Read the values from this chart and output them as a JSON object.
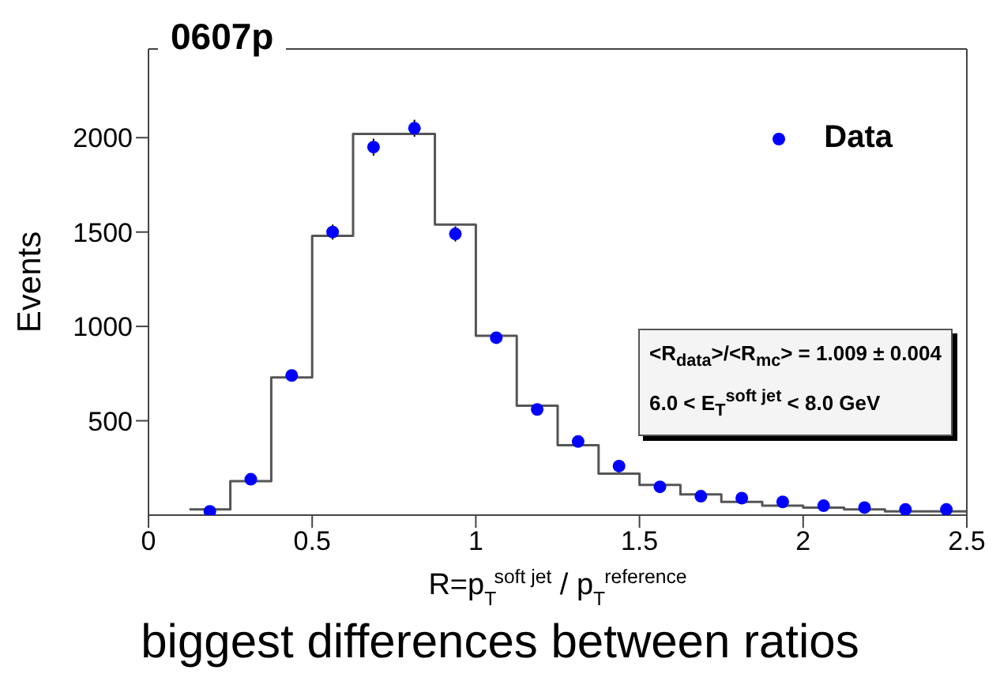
{
  "chart_data": {
    "type": "histogram",
    "title": "0607p",
    "xlabel": "R=p$_{T}$$^{soft jet}$ / p$_{T}$$^{reference}$",
    "ylabel": "Events",
    "bins": [
      0.125,
      0.25,
      0.375,
      0.5,
      0.625,
      0.75,
      0.875,
      1.0,
      1.125,
      1.25,
      1.375,
      1.5,
      1.625,
      1.75,
      1.875,
      2.0,
      2.125,
      2.25,
      2.375,
      2.5
    ],
    "series": [
      {
        "type": "scatter",
        "name": "Data",
        "color": "#0000ff",
        "x": [
          0.1875,
          0.3125,
          0.4375,
          0.5625,
          0.6875,
          0.8125,
          0.9375,
          1.0625,
          1.1875,
          1.3125,
          1.4375,
          1.5625,
          1.6875,
          1.8125,
          1.9375,
          2.0625,
          2.1875,
          2.3125,
          2.4375
        ],
        "values": [
          20,
          190,
          740,
          1500,
          1950,
          2050,
          1490,
          940,
          560,
          390,
          260,
          150,
          100,
          90,
          70,
          50,
          40,
          30,
          30
        ],
        "errors": [
          null,
          null,
          null,
          40,
          45,
          45,
          40,
          null,
          null,
          null,
          null,
          null,
          null,
          null,
          null,
          null,
          null,
          null,
          null
        ]
      },
      {
        "color": "#555555",
        "values": [
          30,
          180,
          730,
          1480,
          2020,
          2020,
          1540,
          950,
          580,
          370,
          220,
          160,
          110,
          70,
          50,
          40,
          30,
          20,
          20
        ]
      }
    ],
    "xlim": [
      0,
      2.5
    ],
    "xticks": [
      0,
      0.5,
      1,
      1.5,
      2,
      2.5
    ],
    "ylim": [
      0,
      2470
    ],
    "yticks": [
      500,
      1000,
      1500,
      2000
    ],
    "grid": false,
    "legend": "top right",
    "marker": "circle",
    "annotations": [
      "<R$_{data}$>/<R$_{mc}$> = 1.009 ± 0.004",
      "6.0 < E$_{T}$$^{soft jet}$ < 8.0 GeV",
      "biggest differences between ratios"
    ]
  }
}
